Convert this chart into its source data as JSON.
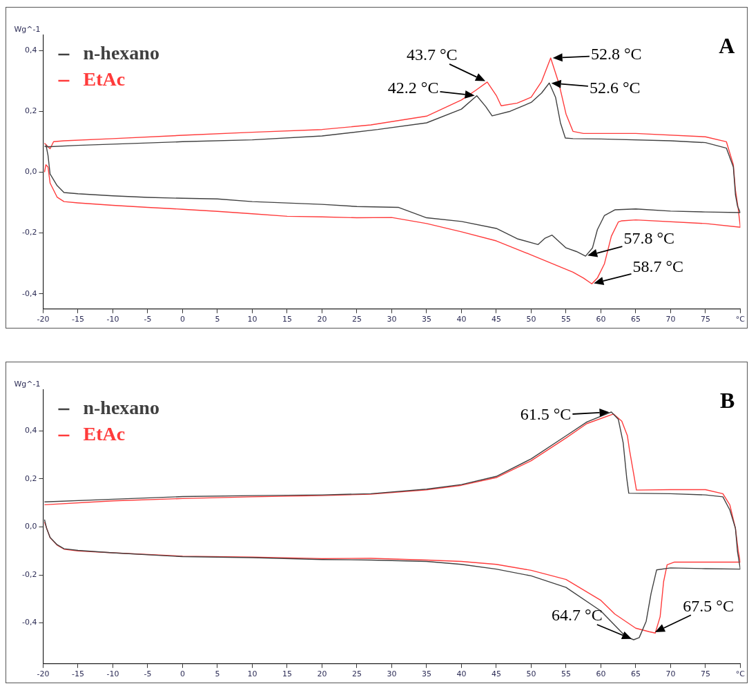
{
  "chart_data": [
    {
      "type": "line",
      "title": "A",
      "ylabel": "Wg^-1",
      "legend": "top left",
      "grid": false,
      "xlim": [
        -20,
        80
      ],
      "xticks": [
        -20,
        -15,
        -10,
        -5,
        0,
        5,
        10,
        15,
        20,
        25,
        30,
        35,
        40,
        45,
        50,
        55,
        60,
        65,
        70,
        75,
        {
          "value": 80,
          "label": "°C"
        }
      ],
      "ylim": [
        -0.45,
        0.45
      ],
      "yticks": [
        {
          "value": -0.4,
          "label": "-0,4"
        },
        {
          "value": -0.2,
          "label": "-0,2"
        },
        {
          "value": 0,
          "label": "0,0"
        },
        {
          "value": 0.2,
          "label": "0,2"
        },
        {
          "value": 0.4,
          "label": "0,4"
        }
      ],
      "series": [
        {
          "name": "n-hexano",
          "color": "#404040",
          "x": [
            -19.8,
            -19.5,
            -15,
            -10,
            -5,
            0,
            10,
            20,
            28,
            35,
            40,
            42.2,
            43.5,
            44.4,
            47,
            50,
            51.5,
            52.6,
            53.5,
            54.2,
            54.9,
            56,
            60,
            70,
            75,
            78,
            79,
            79.3,
            79.6,
            80,
            75,
            70,
            65,
            62,
            60.5,
            59.5,
            58.8,
            57.8,
            56.5,
            55,
            53,
            52,
            51,
            48,
            45,
            40,
            35,
            31,
            25,
            20,
            10,
            5,
            0,
            -5,
            -10,
            -15,
            -17,
            -18,
            -19,
            -19.3,
            -19.6
          ],
          "values": [
            0.085,
            0.083,
            0.088,
            0.092,
            0.096,
            0.1,
            0.106,
            0.119,
            0.14,
            0.162,
            0.207,
            0.251,
            0.215,
            0.185,
            0.2,
            0.229,
            0.26,
            0.293,
            0.246,
            0.162,
            0.112,
            0.11,
            0.109,
            0.103,
            0.097,
            0.079,
            0.017,
            -0.074,
            -0.112,
            -0.133,
            -0.131,
            -0.128,
            -0.121,
            -0.124,
            -0.143,
            -0.189,
            -0.249,
            -0.276,
            -0.261,
            -0.249,
            -0.207,
            -0.217,
            -0.238,
            -0.219,
            -0.185,
            -0.162,
            -0.15,
            -0.116,
            -0.113,
            -0.106,
            -0.097,
            -0.088,
            -0.086,
            -0.083,
            -0.078,
            -0.071,
            -0.067,
            -0.044,
            -0.006,
            0.055,
            0.09
          ]
        },
        {
          "name": "EtAc",
          "color": "#ff3b3b",
          "x": [
            -19.8,
            -19,
            -18.5,
            -17,
            -10,
            0,
            10,
            20,
            27,
            35,
            40,
            42,
            43.7,
            45,
            45.7,
            48,
            50,
            51.5,
            52.8,
            54,
            55,
            56,
            57.5,
            65,
            75,
            78,
            79,
            79.3,
            79.7,
            80,
            75,
            65,
            63,
            62.5,
            61.5,
            60.5,
            59.5,
            58.7,
            57.5,
            56,
            50,
            45,
            40,
            35,
            30,
            25,
            20,
            15,
            10,
            5,
            0,
            -5,
            -10,
            -15,
            -17,
            -18,
            -19,
            -19.3,
            -19.6,
            -19.8
          ],
          "values": [
            0.095,
            0.077,
            0.1,
            0.103,
            0.11,
            0.121,
            0.131,
            0.14,
            0.155,
            0.184,
            0.237,
            0.268,
            0.296,
            0.252,
            0.218,
            0.227,
            0.246,
            0.298,
            0.375,
            0.29,
            0.191,
            0.134,
            0.127,
            0.127,
            0.116,
            0.1,
            0.024,
            -0.059,
            -0.12,
            -0.181,
            -0.169,
            -0.157,
            -0.16,
            -0.164,
            -0.211,
            -0.302,
            -0.348,
            -0.367,
            -0.348,
            -0.329,
            -0.272,
            -0.226,
            -0.196,
            -0.169,
            -0.149,
            -0.15,
            -0.147,
            -0.145,
            -0.137,
            -0.129,
            -0.122,
            -0.116,
            -0.109,
            -0.101,
            -0.097,
            -0.082,
            -0.036,
            0.017,
            0.024,
            0.0
          ]
        }
      ],
      "annotations": [
        {
          "text": "42.2 °C",
          "x": 42.2,
          "y": 0.251
        },
        {
          "text": "43.7 °C",
          "x": 43.7,
          "y": 0.296
        },
        {
          "text": "52.8 °C",
          "x": 52.8,
          "y": 0.375
        },
        {
          "text": "52.6 °C",
          "x": 52.6,
          "y": 0.293
        },
        {
          "text": "57.8 °C",
          "x": 57.8,
          "y": -0.276
        },
        {
          "text": "58.7 °C",
          "x": 58.7,
          "y": -0.367
        }
      ]
    },
    {
      "type": "line",
      "title": "B",
      "ylabel": "Wg^-1",
      "legend": "top left",
      "grid": false,
      "xlim": [
        -20,
        80
      ],
      "xticks": [
        -20,
        -15,
        -10,
        -5,
        0,
        5,
        10,
        15,
        20,
        25,
        30,
        35,
        40,
        45,
        50,
        55,
        60,
        65,
        70,
        75,
        {
          "value": 80,
          "label": "°C"
        }
      ],
      "ylim": [
        -0.57,
        0.57
      ],
      "yticks": [
        {
          "value": -0.4,
          "label": "-0,4"
        },
        {
          "value": -0.2,
          "label": "-0,2"
        },
        {
          "value": 0,
          "label": "0,0"
        },
        {
          "value": 0.2,
          "label": "0,2"
        },
        {
          "value": 0.4,
          "label": "0,4"
        }
      ],
      "series": [
        {
          "name": "n-hexano",
          "color": "#404040",
          "x": [
            -19.8,
            -10,
            0,
            10,
            20,
            27,
            35,
            40,
            45,
            50,
            55,
            58,
            61.5,
            62.5,
            63.2,
            63.7,
            64,
            70,
            75,
            77.5,
            78.5,
            79.3,
            79.6,
            80,
            75,
            70,
            68,
            67.2,
            66.5,
            65.5,
            64.7,
            63.5,
            60,
            55,
            50,
            45,
            40,
            35,
            27,
            20,
            10,
            0,
            -10,
            -15,
            -17,
            -18,
            -19,
            -19.5,
            -19.8
          ],
          "values": [
            0.104,
            0.115,
            0.126,
            0.13,
            0.133,
            0.138,
            0.157,
            0.176,
            0.21,
            0.283,
            0.379,
            0.437,
            0.478,
            0.448,
            0.35,
            0.205,
            0.14,
            0.138,
            0.133,
            0.125,
            0.07,
            -0.006,
            -0.104,
            -0.176,
            -0.174,
            -0.171,
            -0.179,
            -0.277,
            -0.393,
            -0.461,
            -0.47,
            -0.455,
            -0.35,
            -0.252,
            -0.204,
            -0.176,
            -0.156,
            -0.144,
            -0.138,
            -0.136,
            -0.128,
            -0.124,
            -0.108,
            -0.098,
            -0.091,
            -0.074,
            -0.044,
            -0.006,
            0.03
          ]
        },
        {
          "name": "EtAc",
          "color": "#ff3b3b",
          "x": [
            -19.8,
            -10,
            0,
            10,
            20,
            27,
            35,
            40,
            45,
            50,
            55,
            58,
            61.8,
            63,
            63.8,
            64.1,
            64.8,
            65.1,
            70,
            75,
            77.5,
            78.5,
            79.3,
            79.7,
            80,
            70.5,
            69.5,
            69,
            68.5,
            67.8,
            67,
            65,
            62,
            60,
            55,
            50,
            45,
            40,
            35,
            27,
            20,
            10,
            0,
            -10,
            -15,
            -17,
            -18,
            -19,
            -19.5,
            -19.8
          ],
          "values": [
            0.092,
            0.108,
            0.118,
            0.125,
            0.13,
            0.136,
            0.154,
            0.173,
            0.205,
            0.275,
            0.37,
            0.43,
            0.47,
            0.44,
            0.38,
            0.321,
            0.205,
            0.153,
            0.155,
            0.155,
            0.138,
            0.091,
            -0.006,
            -0.1,
            -0.147,
            -0.147,
            -0.158,
            -0.228,
            -0.374,
            -0.442,
            -0.437,
            -0.422,
            -0.363,
            -0.306,
            -0.219,
            -0.181,
            -0.156,
            -0.144,
            -0.138,
            -0.131,
            -0.132,
            -0.126,
            -0.122,
            -0.108,
            -0.1,
            -0.093,
            -0.076,
            -0.045,
            -0.005,
            0.02
          ]
        }
      ],
      "annotations": [
        {
          "text": "61.5 °C",
          "x": 61.5,
          "y": 0.478
        },
        {
          "text": "64.7 °C",
          "x": 64.7,
          "y": -0.47
        },
        {
          "text": "67.5 °C",
          "x": 67.5,
          "y": -0.442
        }
      ]
    }
  ]
}
